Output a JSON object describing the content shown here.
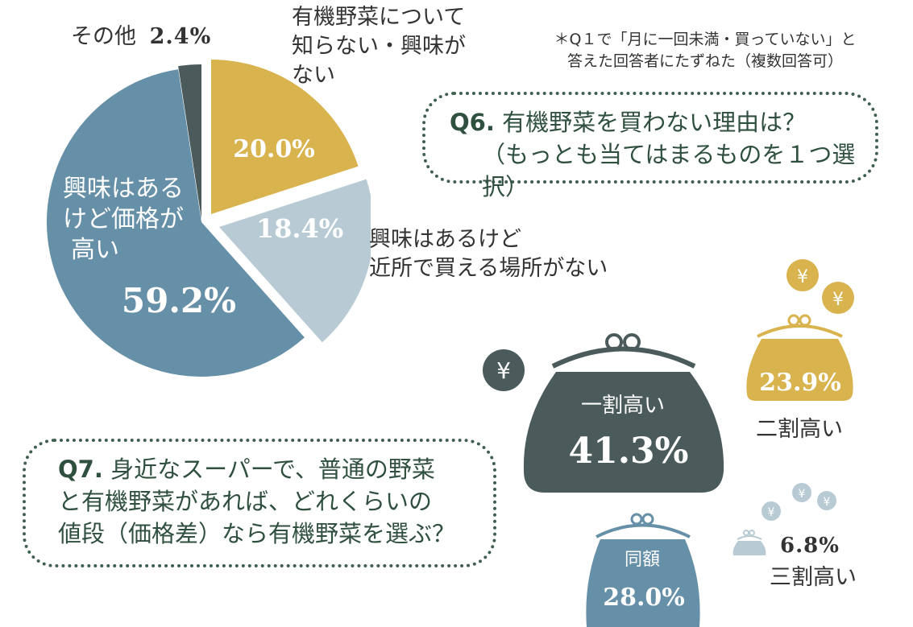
{
  "q6": {
    "number": "Q6.",
    "title": "有機野菜を買わない理由は？",
    "subtitle": "（もっとも当てはまるものを１つ選択）",
    "note_line1": "＊Q１で「月に一回未満・買っていない」と",
    "note_line2": "答えた回答者にたずねた（複数回答可）"
  },
  "q7": {
    "number": "Q7.",
    "line1": "身近なスーパーで、普通の野菜",
    "line2": "と有機野菜があれば、どれくらいの",
    "line3": "値段（価格差）なら有機野菜を選ぶ？"
  },
  "chart_data": [
    {
      "type": "pie",
      "slices": [
        {
          "label": "有機野菜について知らない・興味がない",
          "label_lines": [
            "有機野菜について",
            "知らない・興味が",
            "ない"
          ],
          "value": 20.0,
          "value_label": "20.0%",
          "color": "#d8b34e"
        },
        {
          "label": "興味はあるけど近所で買える場所がない",
          "label_lines": [
            "興味はあるけど",
            "近所で買える場所がない"
          ],
          "value": 18.4,
          "value_label": "18.4%",
          "color": "#b8cbd4"
        },
        {
          "label": "興味はあるけど価格が高い",
          "label_lines": [
            "興味はある",
            "けど価格が",
            "高い"
          ],
          "value": 59.2,
          "value_label": "59.2%",
          "color": "#6690a8"
        },
        {
          "label": "その他",
          "label_lines": [
            "その他"
          ],
          "value": 2.4,
          "value_label": "2.4%",
          "color": "#4b5a5a"
        }
      ]
    },
    {
      "type": "bar",
      "categories": [
        "一割高い",
        "同額",
        "二割高い",
        "三割高い"
      ],
      "values": [
        41.3,
        28.0,
        23.9,
        6.8
      ],
      "value_labels": [
        "41.3%",
        "28.0%",
        "23.9%",
        "6.8%"
      ],
      "colors": [
        "#4b5a5a",
        "#6690a8",
        "#d8b34e",
        "#b8cbd4"
      ]
    }
  ],
  "icons": {
    "yen": "¥"
  }
}
